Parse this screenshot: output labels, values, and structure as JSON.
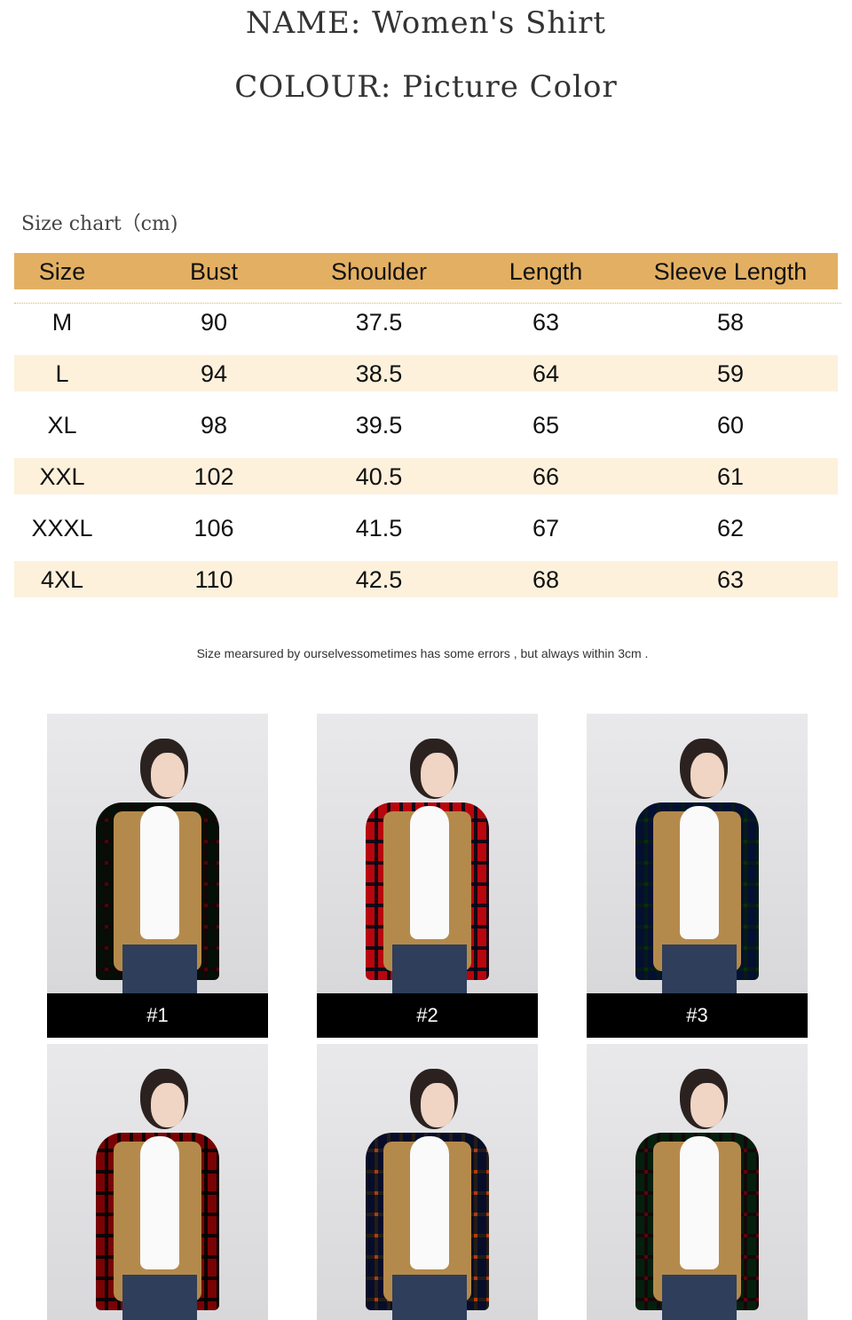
{
  "header": {
    "name_line": "NAME:  Women's Shirt",
    "colour_line": "COLOUR:  Picture Color"
  },
  "size_chart": {
    "label": "Size chart（cm)",
    "header_color": "#e3b063",
    "band_color": "#fdf1dc",
    "columns": [
      "Size",
      "Bust",
      "Shoulder",
      "Length",
      "Sleeve Length"
    ],
    "rows": [
      [
        "M",
        "90",
        "37.5",
        "63",
        "58"
      ],
      [
        "L",
        "94",
        "38.5",
        "64",
        "59"
      ],
      [
        "XL",
        "98",
        "39.5",
        "65",
        "60"
      ],
      [
        "XXL",
        "102",
        "40.5",
        "66",
        "61"
      ],
      [
        "XXXL",
        "106",
        "41.5",
        "67",
        "62"
      ],
      [
        "4XL",
        "110",
        "42.5",
        "68",
        "63"
      ]
    ],
    "note": "Size mearsured by ourselvessometimes has some errors , but always within 3cm ."
  },
  "photos": [
    {
      "caption": "#1",
      "plaid": [
        "#1f3d2a",
        "#8a1e24"
      ]
    },
    {
      "caption": "#2",
      "plaid": [
        "#d8283a",
        "#1e2a55"
      ]
    },
    {
      "caption": "#3",
      "plaid": [
        "#1f3f70",
        "#2f6b3a"
      ]
    },
    {
      "caption": "",
      "plaid": [
        "#b0141e",
        "#1a1a1a"
      ]
    },
    {
      "caption": "",
      "plaid": [
        "#2a3a66",
        "#d77a3a"
      ]
    },
    {
      "caption": "",
      "plaid": [
        "#1f5a3a",
        "#9a1a2a"
      ]
    }
  ]
}
